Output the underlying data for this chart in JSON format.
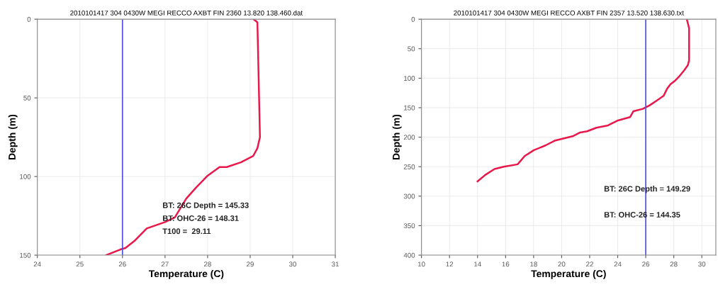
{
  "chart_data": [
    {
      "type": "line",
      "title": "2010101417 304 0430W MEGI RECCO AXBT FIN 2360 13.820 138.460.dat",
      "xlabel": "Temperature (C)",
      "ylabel": "Depth (m)",
      "xlim": [
        24,
        31
      ],
      "xticks": [
        24,
        25,
        26,
        27,
        28,
        29,
        30,
        31
      ],
      "ylim": [
        150,
        0
      ],
      "yticks": [
        0,
        50,
        100,
        150
      ],
      "grid": true,
      "marker": "none",
      "line_style": "solid",
      "series": [
        {
          "color": "#e8194a",
          "x": [
            29.08,
            29.17,
            29.23,
            29.17,
            29.07,
            28.78,
            28.45,
            28.28,
            28.0,
            27.73,
            27.5,
            27.23,
            27.0,
            26.57,
            26.28,
            26.07,
            25.95,
            25.62
          ],
          "values": [
            0,
            2,
            75,
            82,
            87,
            91,
            94,
            94,
            99.5,
            107,
            114,
            126,
            129,
            133,
            141,
            145.5,
            146.4,
            150
          ]
        }
      ],
      "ref_lines": [
        {
          "axis": "x",
          "value": 26,
          "color": "#5050e0"
        }
      ],
      "annotations": [
        "BT: 26C Depth = 145.33",
        "BT: OHC-26 = 148.31",
        "T100 =  29.11"
      ]
    },
    {
      "type": "line",
      "title": "2010101417 304 0430W MEGI RECCO AXBT FIN 2357 13.520 138.630.txt",
      "xlabel": "Temperature (C)",
      "ylabel": "Depth (m)",
      "xlim": [
        10,
        31
      ],
      "xticks": [
        10,
        12,
        14,
        16,
        18,
        20,
        22,
        24,
        26,
        28,
        30
      ],
      "ylim": [
        400,
        0
      ],
      "yticks": [
        0,
        50,
        100,
        150,
        200,
        250,
        300,
        350,
        400
      ],
      "grid": true,
      "marker": "none",
      "line_style": "solid",
      "series": [
        {
          "color": "#e8194a",
          "x": [
            28.93,
            29.09,
            29.09,
            29.0,
            28.76,
            28.35,
            28.1,
            27.77,
            27.52,
            27.27,
            26.78,
            26.28,
            25.79,
            25.12,
            24.88,
            23.97,
            23.31,
            22.48,
            21.82,
            21.32,
            20.83,
            20.17,
            19.5,
            18.84,
            18.02,
            17.36,
            16.86,
            15.87,
            15.21,
            14.55,
            14.0
          ],
          "values": [
            0,
            15,
            70,
            78,
            86,
            98,
            104,
            110,
            118,
            130,
            138,
            146,
            152,
            156,
            166,
            172,
            180,
            184,
            190,
            192,
            198,
            202,
            206,
            214,
            222,
            232,
            246,
            250,
            254,
            264,
            275
          ]
        }
      ],
      "ref_lines": [
        {
          "axis": "x",
          "value": 26,
          "color": "#5050e0"
        }
      ],
      "annotations": [
        "BT: 26C Depth = 149.29",
        "BT: OHC-26 = 144.35"
      ]
    }
  ]
}
